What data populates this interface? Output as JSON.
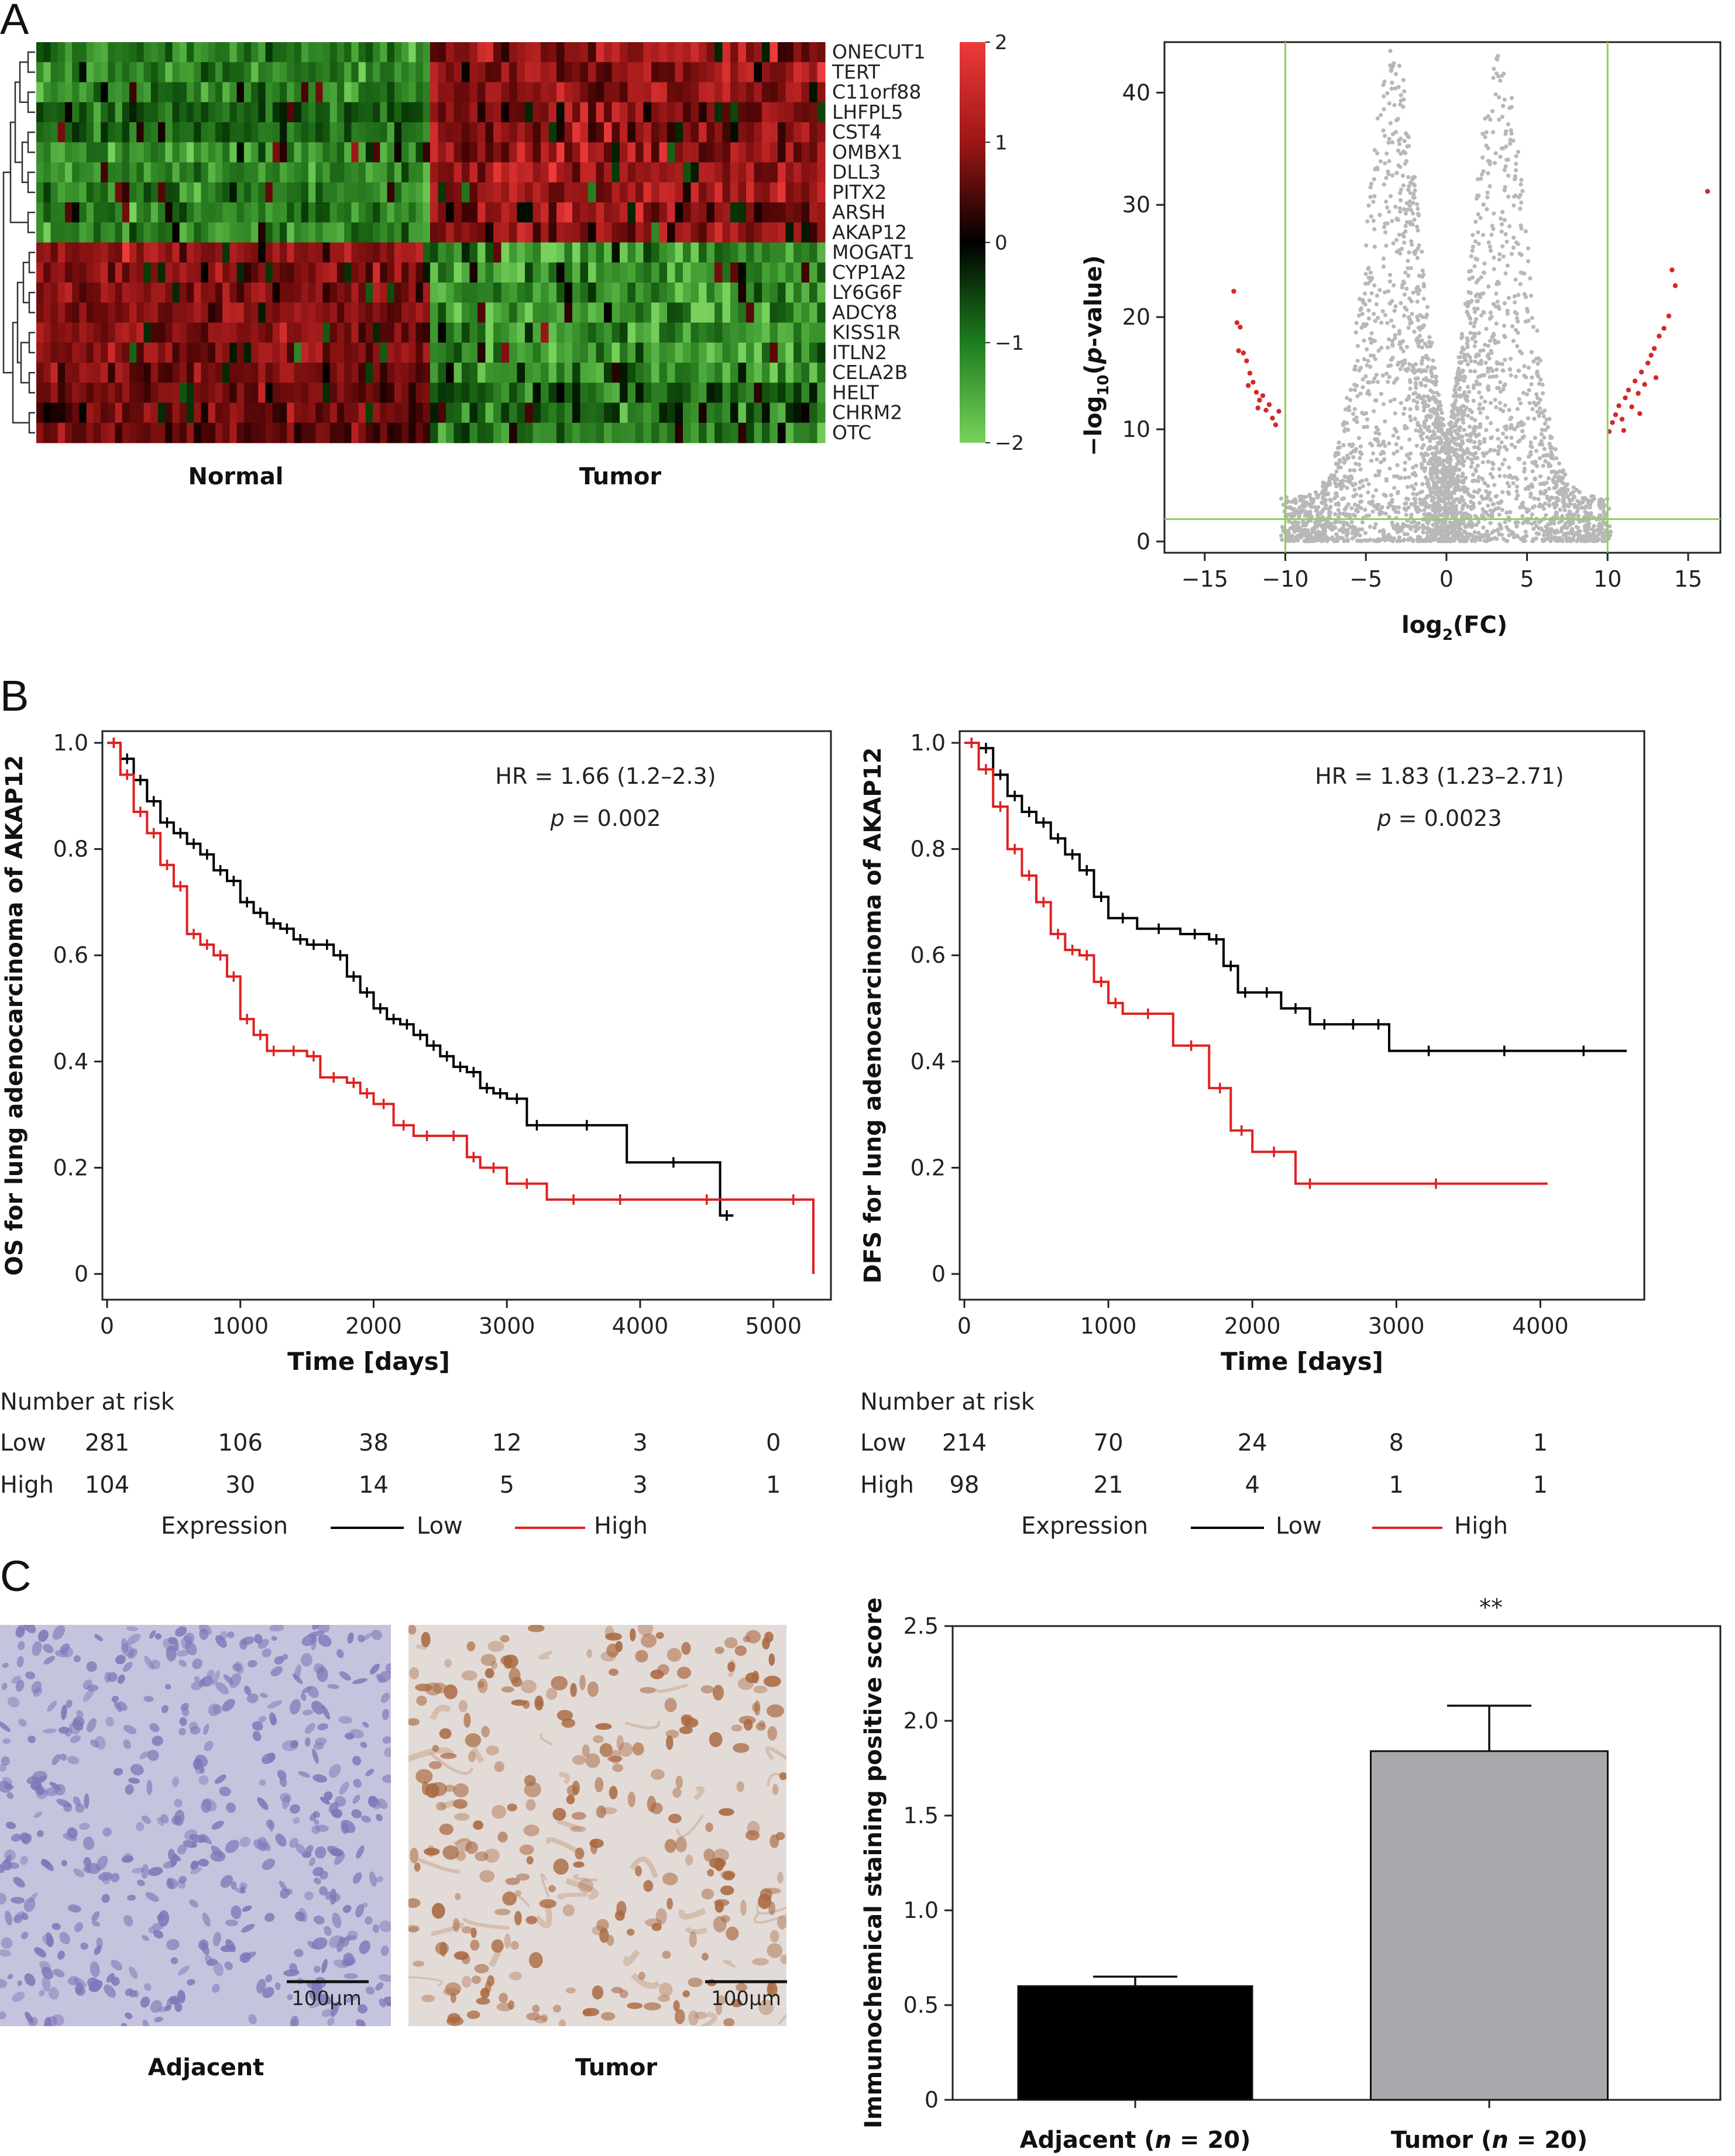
{
  "panels": {
    "a": "A",
    "b": "B",
    "c": "C"
  },
  "heatmap": {
    "genes": [
      "ONECUT1",
      "TERT",
      "C11orf88",
      "LHFPL5",
      "CST4",
      "OMBX1",
      "DLL3",
      "PITX2",
      "ARSH",
      "AKAP12",
      "MOGAT1",
      "CYP1A2",
      "LY6G6F",
      "ADCY8",
      "KISS1R",
      "ITLN2",
      "CELA2B",
      "HELT",
      "CHRM2",
      "OTC"
    ],
    "highlight_gene": "AKAP12",
    "highlight_color": "#d62728",
    "group_labels": [
      "Normal",
      "Tumor"
    ],
    "colorbar_ticks": [
      "2",
      "1",
      "0",
      "−1",
      "−2"
    ],
    "colors": {
      "high": "#ee3a3a",
      "mid": "#000000",
      "low": "#77d15c"
    }
  },
  "volcano": {
    "ylabel_main": "−log",
    "ylabel_sub": "10",
    "ylabel_open": "(",
    "ylabel_italic": "p",
    "ylabel_rest": "-value)",
    "xlabel_main": "log",
    "xlabel_sub": "2",
    "xlabel_rest": "(FC)",
    "x_ticks": [
      "−15",
      "−10",
      "−5",
      "0",
      "5",
      "10",
      "15"
    ],
    "y_ticks": [
      "0",
      "10",
      "20",
      "30",
      "40"
    ],
    "xlim": [
      -17.5,
      17.0
    ],
    "ylim": [
      -1,
      44.5
    ],
    "thresholds": {
      "x": [
        -10,
        10
      ],
      "y": 2
    },
    "colors": {
      "point": "#b8b8b8",
      "significant": "#d62728",
      "threshold": "#8fcf5a"
    }
  },
  "km": {
    "expression_label": "Expression",
    "low_label": "Low",
    "high_label": "High",
    "risk_title": "Number at risk",
    "colors": {
      "low": "#000000",
      "high": "#e02020"
    },
    "os": {
      "ylabel": "OS for lung adenocarcinoma of AKAP12",
      "xlabel": "Time [days]",
      "hr": "HR = 1.66 (1.2–2.3)",
      "p_label": "p",
      "p_value": " = 0.002",
      "x_ticks": [
        "0",
        "1000",
        "2000",
        "3000",
        "4000",
        "5000"
      ],
      "y_ticks": [
        "0",
        "0.2",
        "0.4",
        "0.6",
        "0.8",
        "1.0"
      ],
      "risk_low": [
        "281",
        "106",
        "38",
        "12",
        "3",
        "0"
      ],
      "risk_high": [
        "104",
        "30",
        "14",
        "5",
        "3",
        "1"
      ]
    },
    "dfs": {
      "ylabel": "DFS for lung adenocarcinoma of AKAP12",
      "xlabel": "Time [days]",
      "hr": "HR = 1.83 (1.23–2.71)",
      "p_label": "p",
      "p_value": " = 0.0023",
      "x_ticks": [
        "0",
        "1000",
        "2000",
        "3000",
        "4000"
      ],
      "y_ticks": [
        "0",
        "0.2",
        "0.4",
        "0.6",
        "0.8",
        "1.0"
      ],
      "risk_low": [
        "214",
        "70",
        "24",
        "8",
        "1"
      ],
      "risk_high": [
        "98",
        "21",
        "4",
        "1",
        "1"
      ]
    }
  },
  "ihc": {
    "adjacent_label": "Adjacent",
    "tumor_label": "Tumor",
    "scale_bar": "100μm",
    "colors": {
      "adjacent_bg": "#c5c4de",
      "adjacent_cell": "#7e76b8",
      "tumor_bg": "#e3dbd8",
      "tumor_cell": "#a9683f"
    }
  },
  "bar": {
    "ylabel": "Immunochemical staining positive score",
    "x_tick_labels": [
      {
        "name": "Adjacent",
        "n_open": " (",
        "n_italic": "n",
        "n_rest": " = 20)"
      },
      {
        "name": "Tumor",
        "n_open": " (",
        "n_italic": "n",
        "n_rest": " = 20)"
      }
    ],
    "y_ticks": [
      "0",
      "0.5",
      "1.0",
      "1.5",
      "2.0",
      "2.5"
    ],
    "significance": "**",
    "colors": {
      "adjacent": "#000000",
      "tumor": "#a7a9ad"
    }
  },
  "chart_data": [
    {
      "type": "heatmap",
      "rows": [
        "ONECUT1",
        "TERT",
        "C11orf88",
        "LHFPL5",
        "CST4",
        "OMBX1",
        "DLL3",
        "PITX2",
        "ARSH",
        "AKAP12",
        "MOGAT1",
        "CYP1A2",
        "LY6G6F",
        "ADCY8",
        "KISS1R",
        "ITLN2",
        "CELA2B",
        "HELT",
        "CHRM2",
        "OTC"
      ],
      "column_groups": [
        "Normal",
        "Tumor"
      ],
      "group_mean_z": {
        "Normal": [
          -1.2,
          -1.2,
          -1.2,
          -1.0,
          -1.0,
          -1.3,
          -1.3,
          -1.2,
          -1.2,
          -1.2,
          1.1,
          1.1,
          1.1,
          1.1,
          1.1,
          1.1,
          1.0,
          0.9,
          0.9,
          0.9
        ],
        "Tumor": [
          1.2,
          1.2,
          1.2,
          1.0,
          1.0,
          1.3,
          1.3,
          1.2,
          1.2,
          1.2,
          -1.4,
          -1.4,
          -1.4,
          -1.4,
          -1.4,
          -1.4,
          -1.3,
          -0.9,
          -0.9,
          -1.2
        ]
      },
      "color_range": [
        -2,
        2
      ]
    },
    {
      "type": "scatter",
      "xlabel": "log2(FC)",
      "ylabel": "−log10(p-value)",
      "xlim": [
        -17.5,
        17.0
      ],
      "ylim": [
        0,
        44
      ],
      "thresholds": {
        "x": [
          -10,
          10
        ],
        "y": 2
      },
      "significant_points_left": [
        [
          -13.2,
          22.3
        ],
        [
          -13.0,
          19.5
        ],
        [
          -12.8,
          19.1
        ],
        [
          -12.6,
          16.8
        ],
        [
          -12.4,
          16.1
        ],
        [
          -12.2,
          15.0
        ],
        [
          -12.0,
          14.2
        ],
        [
          -11.8,
          13.3
        ],
        [
          -11.6,
          12.6
        ],
        [
          -11.4,
          13.0
        ],
        [
          -11.2,
          11.7
        ],
        [
          -11.0,
          12.2
        ],
        [
          -10.8,
          11.0
        ],
        [
          -10.6,
          10.4
        ],
        [
          -10.4,
          11.6
        ],
        [
          -12.9,
          17.0
        ],
        [
          -12.3,
          13.9
        ],
        [
          -11.7,
          11.9
        ]
      ],
      "significant_points_right": [
        [
          10.1,
          9.8
        ],
        [
          10.3,
          10.6
        ],
        [
          10.5,
          11.3
        ],
        [
          10.7,
          12.1
        ],
        [
          10.9,
          10.9
        ],
        [
          11.1,
          12.8
        ],
        [
          11.3,
          13.5
        ],
        [
          11.5,
          12.0
        ],
        [
          11.7,
          14.3
        ],
        [
          11.9,
          13.2
        ],
        [
          12.1,
          15.1
        ],
        [
          12.3,
          14.0
        ],
        [
          12.5,
          15.9
        ],
        [
          12.7,
          16.6
        ],
        [
          12.9,
          17.2
        ],
        [
          13.2,
          18.3
        ],
        [
          13.5,
          19.0
        ],
        [
          13.8,
          20.1
        ],
        [
          14.0,
          24.2
        ],
        [
          14.2,
          22.8
        ],
        [
          16.2,
          31.2
        ],
        [
          11.0,
          9.9
        ],
        [
          12.0,
          11.4
        ],
        [
          13.0,
          14.6
        ]
      ]
    },
    {
      "type": "line",
      "title": "",
      "xlabel": "Time [days]",
      "ylabel": "OS for lung adenocarcinoma of AKAP12",
      "xlim": [
        0,
        5300
      ],
      "ylim": [
        0,
        1.0
      ],
      "series": [
        {
          "name": "Low",
          "x": [
            0,
            100,
            200,
            300,
            400,
            500,
            600,
            700,
            800,
            900,
            1000,
            1100,
            1200,
            1300,
            1400,
            1500,
            1600,
            1700,
            1800,
            1900,
            2000,
            2100,
            2200,
            2300,
            2400,
            2500,
            2600,
            2700,
            2800,
            2900,
            3000,
            3150,
            3300,
            3900,
            4600,
            4700
          ],
          "y": [
            1.0,
            0.97,
            0.93,
            0.89,
            0.85,
            0.83,
            0.81,
            0.79,
            0.76,
            0.74,
            0.7,
            0.68,
            0.66,
            0.65,
            0.63,
            0.62,
            0.62,
            0.6,
            0.56,
            0.53,
            0.5,
            0.48,
            0.47,
            0.45,
            0.43,
            0.41,
            0.39,
            0.38,
            0.35,
            0.34,
            0.33,
            0.28,
            0.28,
            0.21,
            0.11,
            0.11
          ]
        },
        {
          "name": "High",
          "x": [
            0,
            100,
            200,
            300,
            400,
            500,
            600,
            700,
            800,
            900,
            1000,
            1100,
            1200,
            1300,
            1500,
            1600,
            1800,
            1900,
            2000,
            2150,
            2300,
            2500,
            2700,
            2800,
            3000,
            3300,
            3700,
            4000,
            5000,
            5300
          ],
          "y": [
            1.0,
            0.94,
            0.87,
            0.83,
            0.77,
            0.73,
            0.64,
            0.62,
            0.6,
            0.56,
            0.48,
            0.45,
            0.42,
            0.42,
            0.41,
            0.37,
            0.36,
            0.34,
            0.32,
            0.28,
            0.26,
            0.26,
            0.22,
            0.2,
            0.17,
            0.14,
            0.14,
            0.14,
            0.14,
            0.0
          ]
        }
      ]
    },
    {
      "type": "line",
      "title": "",
      "xlabel": "Time [days]",
      "ylabel": "DFS for lung adenocarcinoma of AKAP12",
      "xlim": [
        0,
        4600
      ],
      "ylim": [
        0,
        1.0
      ],
      "series": [
        {
          "name": "Low",
          "x": [
            0,
            100,
            200,
            300,
            400,
            500,
            600,
            700,
            800,
            900,
            1000,
            1200,
            1500,
            1700,
            1800,
            1900,
            2000,
            2200,
            2400,
            2600,
            2800,
            2950,
            3500,
            4000,
            4600
          ],
          "y": [
            1.0,
            0.99,
            0.94,
            0.9,
            0.87,
            0.85,
            0.82,
            0.79,
            0.76,
            0.71,
            0.67,
            0.65,
            0.64,
            0.63,
            0.58,
            0.53,
            0.53,
            0.5,
            0.47,
            0.47,
            0.47,
            0.42,
            0.42,
            0.42,
            0.42
          ]
        },
        {
          "name": "High",
          "x": [
            0,
            100,
            200,
            300,
            400,
            500,
            600,
            700,
            800,
            900,
            1000,
            1100,
            1450,
            1700,
            1850,
            2000,
            2300,
            2500,
            4050
          ],
          "y": [
            1.0,
            0.95,
            0.88,
            0.8,
            0.75,
            0.7,
            0.64,
            0.61,
            0.6,
            0.55,
            0.51,
            0.49,
            0.43,
            0.35,
            0.27,
            0.23,
            0.17,
            0.17,
            0.17
          ]
        }
      ]
    },
    {
      "type": "bar",
      "xlabel": "",
      "ylabel": "Immunochemical staining positive score",
      "categories": [
        "Adjacent (n = 20)",
        "Tumor (n = 20)"
      ],
      "values": [
        0.6,
        1.84
      ],
      "error": [
        0.05,
        0.24
      ],
      "ylim": [
        0,
        2.5
      ],
      "annotation": "**"
    }
  ]
}
